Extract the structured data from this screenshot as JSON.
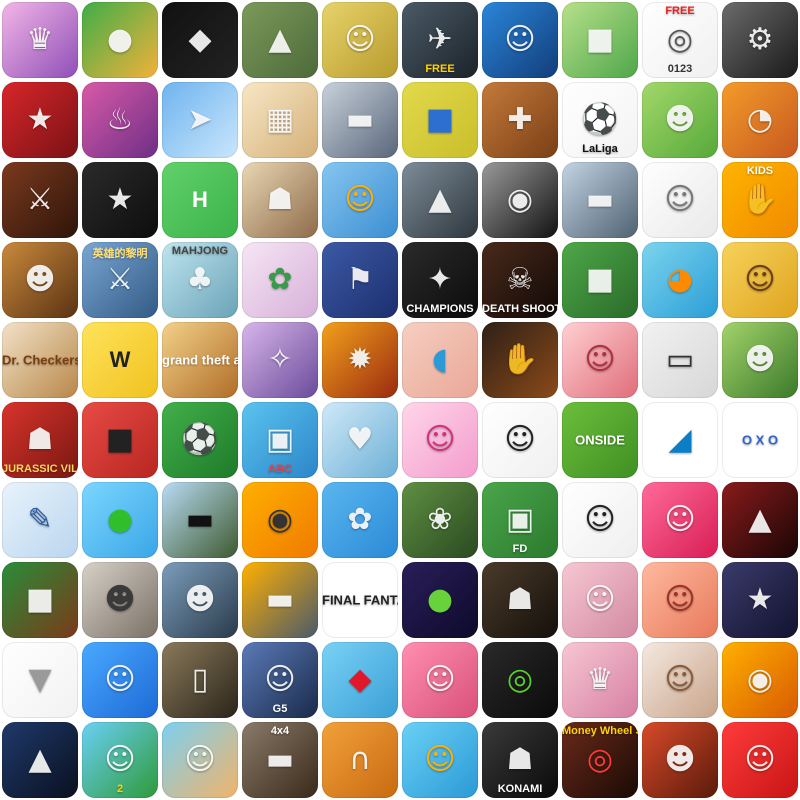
{
  "page": {
    "tiles": [
      {
        "icon": "princess-dress-icon",
        "bg": [
          "#f3b6e6",
          "#8f4fb8"
        ],
        "label": "",
        "glyph": "♛"
      },
      {
        "icon": "burger-icon",
        "bg": [
          "#3fae49",
          "#f2b13a"
        ],
        "label": "",
        "glyph": "●"
      },
      {
        "icon": "blue-creature-icon",
        "bg": [
          "#111111",
          "#222222"
        ],
        "label": "",
        "glyph": "◆"
      },
      {
        "icon": "gun-shooter-icon",
        "bg": [
          "#7b9a5a",
          "#4d6a3a"
        ],
        "label": "",
        "glyph": "▲"
      },
      {
        "icon": "letters-boy-icon",
        "bg": [
          "#e7d36b",
          "#b89b2d"
        ],
        "label": "",
        "glyph": "☺"
      },
      {
        "icon": "airplane-icon",
        "bg": [
          "#4b5a66",
          "#1b232a"
        ],
        "label": "FREE",
        "labelPos": "bottom",
        "labelColor": "#ffd400",
        "glyph": "✈"
      },
      {
        "icon": "cartoon-kids-icon",
        "bg": [
          "#2a86d8",
          "#123d7a"
        ],
        "label": "",
        "glyph": "☺"
      },
      {
        "icon": "blocky-character-icon",
        "bg": [
          "#b7e18a",
          "#4fa64a"
        ],
        "label": "",
        "glyph": "■"
      },
      {
        "icon": "target-numbers-icon",
        "bg": [
          "#ffffff",
          "#f0f0f0"
        ],
        "label": "FREE",
        "labelPos": "top",
        "labelColor": "#e82020",
        "sub": "0123",
        "glyph": "◎",
        "glyphColor": "#555555"
      },
      {
        "icon": "motorbike-icon",
        "bg": [
          "#6b6b6b",
          "#1a1a1a"
        ],
        "label": "",
        "glyph": "⚙"
      },
      {
        "icon": "santa-cat-icon",
        "bg": [
          "#d7262a",
          "#7a1214"
        ],
        "label": "",
        "glyph": "★"
      },
      {
        "icon": "restaurant-dash-icon",
        "bg": [
          "#d95aa8",
          "#6d2f86"
        ],
        "label": "",
        "glyph": "♨"
      },
      {
        "icon": "jet-fighter-icon",
        "bg": [
          "#6fb4ef",
          "#c9e6fb"
        ],
        "label": "",
        "glyph": "➤"
      },
      {
        "icon": "wood-blocks-icon",
        "bg": [
          "#f7e7c5",
          "#d5b07a"
        ],
        "label": "",
        "glyph": "▦"
      },
      {
        "icon": "truck-icon",
        "bg": [
          "#c9d2db",
          "#59667a"
        ],
        "label": "",
        "glyph": "▬"
      },
      {
        "icon": "blue-car-icon",
        "bg": [
          "#e2d94d",
          "#c9bf2a"
        ],
        "label": "",
        "glyph": "■",
        "glyphColor": "#2c6fd1"
      },
      {
        "icon": "jigsaw-puzzle-icon",
        "bg": [
          "#c47a3a",
          "#7a3f16"
        ],
        "label": "",
        "glyph": "✚"
      },
      {
        "icon": "laliga-icon",
        "bg": [
          "#ffffff",
          "#f3f3f3"
        ],
        "label": "LaLiga",
        "labelPos": "bottom",
        "labelColor": "#111111",
        "glyph": "⚽",
        "glyphColor": "#e23a3a"
      },
      {
        "icon": "panda-icon",
        "bg": [
          "#a2d86a",
          "#57a83a"
        ],
        "label": "",
        "glyph": "☻"
      },
      {
        "icon": "pizza-girl-icon",
        "bg": [
          "#f39c2a",
          "#c7581f"
        ],
        "label": "",
        "glyph": "◔"
      },
      {
        "icon": "roman-warrior-icon",
        "bg": [
          "#7b3a1e",
          "#2e1409"
        ],
        "label": "",
        "glyph": "⚔"
      },
      {
        "icon": "star-ship-icon",
        "bg": [
          "#2b2b2b",
          "#0d0d0d"
        ],
        "label": "",
        "glyph": "★"
      },
      {
        "icon": "h-letter-icon",
        "bg": [
          "#62d16a",
          "#3cb24a"
        ],
        "label": "H",
        "labelPos": "big",
        "labelColor": "#ffffff",
        "glyph": ""
      },
      {
        "icon": "pixel-man-icon",
        "bg": [
          "#e8d7b4",
          "#8e6b49"
        ],
        "label": "",
        "glyph": "☗"
      },
      {
        "icon": "orange-smile-icon",
        "bg": [
          "#86c6f0",
          "#3b8ed2"
        ],
        "label": "",
        "glyph": "☺",
        "glyphColor": "#ffb000"
      },
      {
        "icon": "road-skater-icon",
        "bg": [
          "#7e8d99",
          "#2e363d"
        ],
        "label": "",
        "glyph": "▲"
      },
      {
        "icon": "motorcycle-racer-icon",
        "bg": [
          "#9a9a9a",
          "#121212"
        ],
        "label": "",
        "glyph": "◉"
      },
      {
        "icon": "silver-car-icon",
        "bg": [
          "#c3d4e3",
          "#4f6272"
        ],
        "label": "",
        "glyph": "▬"
      },
      {
        "icon": "white-cat-icon",
        "bg": [
          "#ffffff",
          "#e9e9e9"
        ],
        "label": "",
        "glyph": "☺",
        "glyphColor": "#777777"
      },
      {
        "icon": "kids-hands-icon",
        "bg": [
          "#ffb400",
          "#f08a00"
        ],
        "label": "KIDS",
        "labelPos": "top",
        "labelColor": "#ffffff",
        "glyph": "✋"
      },
      {
        "icon": "cowboy-icon",
        "bg": [
          "#c98a3d",
          "#5a3212"
        ],
        "label": "",
        "glyph": "☻"
      },
      {
        "icon": "soldiers-icon",
        "bg": [
          "#7aa6d1",
          "#325b86"
        ],
        "label": "英雄的黎明",
        "labelPos": "top",
        "labelColor": "#ffe07a",
        "glyph": "⚔"
      },
      {
        "icon": "mahjong-icon",
        "bg": [
          "#bfe5ef",
          "#6aa3b7"
        ],
        "label": "MAHJONG",
        "labelPos": "top",
        "labelColor": "#444444",
        "glyph": "♣"
      },
      {
        "icon": "fairy-icon",
        "bg": [
          "#f6e6f5",
          "#d7b0d8"
        ],
        "label": "",
        "glyph": "✿",
        "glyphColor": "#3a9a4a"
      },
      {
        "icon": "racing-flags-icon",
        "bg": [
          "#3c5aa6",
          "#1c2f6e"
        ],
        "label": "",
        "glyph": "⚑"
      },
      {
        "icon": "real-steel-icon",
        "bg": [
          "#2b2b2b",
          "#0b0b0b"
        ],
        "label": "CHAMPIONS",
        "labelPos": "bottom",
        "labelColor": "#ffffff",
        "glyph": "✦"
      },
      {
        "icon": "death-shooter-icon",
        "bg": [
          "#4a2a1a",
          "#110907"
        ],
        "label": "DEATH SHOOTER",
        "labelPos": "bottom",
        "labelColor": "#ffffff",
        "glyph": "☠"
      },
      {
        "icon": "blocky-gunner-icon",
        "bg": [
          "#4ea848",
          "#2a6b2a"
        ],
        "label": "",
        "glyph": "■"
      },
      {
        "icon": "orange-juice-icon",
        "bg": [
          "#7cd4ee",
          "#2a9ed6"
        ],
        "label": "",
        "glyph": "◕",
        "glyphColor": "#ff8a00"
      },
      {
        "icon": "sombrero-face-icon",
        "bg": [
          "#f6d35a",
          "#e0a320"
        ],
        "label": "",
        "glyph": "☺",
        "glyphColor": "#6b3d1a"
      },
      {
        "icon": "dr-checkers-icon",
        "bg": [
          "#f2e2c6",
          "#b8874a"
        ],
        "label": "Dr. Checkers",
        "labelPos": "center",
        "labelColor": "#7a3e10",
        "glyph": ""
      },
      {
        "icon": "word-tiles-icon",
        "bg": [
          "#ffe35b",
          "#f0c21f"
        ],
        "label": "W",
        "labelPos": "big",
        "labelColor": "#222222",
        "glyph": ""
      },
      {
        "icon": "grand-theft-auto-icon",
        "bg": [
          "#f3d18a",
          "#b06d27"
        ],
        "label": "grand theft auto V",
        "labelPos": "center",
        "labelColor": "#ffffff",
        "glyph": ""
      },
      {
        "icon": "anime-witch-icon",
        "bg": [
          "#d8b6ea",
          "#6a4b9a"
        ],
        "label": "",
        "glyph": "✧"
      },
      {
        "icon": "spiky-hero-icon",
        "bg": [
          "#f2a11a",
          "#9a2a10"
        ],
        "label": "",
        "glyph": "✹"
      },
      {
        "icon": "blue-fish-icon",
        "bg": [
          "#f6cfc2",
          "#e9a796"
        ],
        "label": "",
        "glyph": "◖",
        "glyphColor": "#2b9ad6"
      },
      {
        "icon": "hand-fighter-icon",
        "bg": [
          "#2f2016",
          "#8a4a1a"
        ],
        "label": "",
        "glyph": "✋"
      },
      {
        "icon": "dentist-mouth-icon",
        "bg": [
          "#ffd0d3",
          "#e06d79"
        ],
        "label": "",
        "glyph": "☺",
        "glyphColor": "#b0303d"
      },
      {
        "icon": "assault-rifle-icon",
        "bg": [
          "#f2f2f2",
          "#d7d7d7"
        ],
        "label": "",
        "glyph": "▭",
        "glyphColor": "#333333"
      },
      {
        "icon": "jungle-monkey-icon",
        "bg": [
          "#a3d36b",
          "#3b7a2a"
        ],
        "label": "",
        "glyph": "☻"
      },
      {
        "icon": "jurassic-village-icon",
        "bg": [
          "#d8342b",
          "#7a1712"
        ],
        "label": "JURASSIC VILLAGE",
        "labelPos": "bottom",
        "labelColor": "#ffd35a",
        "glyph": "☗"
      },
      {
        "icon": "red-monster-icon",
        "bg": [
          "#e84b45",
          "#b82621"
        ],
        "label": "",
        "glyph": "■",
        "glyphColor": "#222222"
      },
      {
        "icon": "soccer-field-icon",
        "bg": [
          "#42b04a",
          "#1e7a2a"
        ],
        "label": "",
        "glyph": "⚽"
      },
      {
        "icon": "abc-train-icon",
        "bg": [
          "#5bc4ef",
          "#2b86c9"
        ],
        "label": "ABC",
        "labelPos": "bottom",
        "labelColor": "#ff3a3a",
        "glyph": "▣"
      },
      {
        "icon": "wedding-couple-icon",
        "bg": [
          "#cfe9f7",
          "#6db0d6"
        ],
        "label": "",
        "glyph": "♥"
      },
      {
        "icon": "pink-hair-girl-icon",
        "bg": [
          "#ffd6ea",
          "#f39ccc"
        ],
        "label": "",
        "glyph": "☺",
        "glyphColor": "#d1327f"
      },
      {
        "icon": "cartoon-boy-icon",
        "bg": [
          "#ffffff",
          "#f0f0f0"
        ],
        "label": "",
        "glyph": "☺",
        "glyphColor": "#222222"
      },
      {
        "icon": "onside-icon",
        "bg": [
          "#6bbf3a",
          "#3f8f24"
        ],
        "label": "ONSIDE",
        "labelPos": "center",
        "labelColor": "#ffffff",
        "glyph": ""
      },
      {
        "icon": "panther-icon",
        "bg": [
          "#ffffff",
          "#ffffff"
        ],
        "label": "",
        "glyph": "◢",
        "glyphColor": "#0a7fc6"
      },
      {
        "icon": "tic-tac-toe-icon",
        "bg": [
          "#ffffff",
          "#ffffff"
        ],
        "label": "O X O",
        "labelPos": "center",
        "labelColor": "#2b63c8",
        "glyph": ""
      },
      {
        "icon": "notebook-pen-icon",
        "bg": [
          "#e9f3fb",
          "#b9d6ef"
        ],
        "label": "",
        "glyph": "✎",
        "glyphColor": "#2d5fa1"
      },
      {
        "icon": "cut-the-rope-icon",
        "bg": [
          "#7cd6ff",
          "#3aa6e6"
        ],
        "label": "",
        "glyph": "●",
        "glyphColor": "#2fbf2a"
      },
      {
        "icon": "classic-car-icon",
        "bg": [
          "#b8dcf5",
          "#3e5a2e"
        ],
        "label": "",
        "glyph": "▬",
        "glyphColor": "#111111"
      },
      {
        "icon": "astronaut-icon",
        "bg": [
          "#ffb000",
          "#f07a00"
        ],
        "label": "",
        "glyph": "◉",
        "glyphColor": "#333333"
      },
      {
        "icon": "daisy-flower-icon",
        "bg": [
          "#5bb6ef",
          "#2a8ad6"
        ],
        "label": "",
        "glyph": "✿"
      },
      {
        "icon": "garden-stairs-icon",
        "bg": [
          "#5f8f43",
          "#2a4a20"
        ],
        "label": "",
        "glyph": "❀"
      },
      {
        "icon": "laliga-fantasy-icon",
        "bg": [
          "#4aa64b",
          "#2b7a2e"
        ],
        "label": "FD",
        "labelPos": "bottom",
        "labelColor": "#ffffff",
        "glyph": "▣"
      },
      {
        "icon": "doodle-cat-icon",
        "bg": [
          "#ffffff",
          "#efefef"
        ],
        "label": "",
        "glyph": "☺",
        "glyphColor": "#222222"
      },
      {
        "icon": "chef-icon",
        "bg": [
          "#ff6a9a",
          "#d81e55"
        ],
        "label": "",
        "glyph": "☺"
      },
      {
        "icon": "mafia-gun-icon",
        "bg": [
          "#8a1b1b",
          "#1a0505"
        ],
        "label": "",
        "glyph": "▲"
      },
      {
        "icon": "pixel-fighters-icon",
        "bg": [
          "#2a8c3a",
          "#7a3a1a"
        ],
        "label": "",
        "glyph": "■"
      },
      {
        "icon": "word-face-icon",
        "bg": [
          "#d7d1c8",
          "#7a7066"
        ],
        "label": "",
        "glyph": "☻",
        "glyphColor": "#3a3a3a"
      },
      {
        "icon": "soldier-vr-icon",
        "bg": [
          "#7b9dbb",
          "#2a3b4a"
        ],
        "label": "",
        "glyph": "☻"
      },
      {
        "icon": "orange-truck-icon",
        "bg": [
          "#ffb000",
          "#4a5a6a"
        ],
        "label": "",
        "glyph": "▬"
      },
      {
        "icon": "final-fantasy-icon",
        "bg": [
          "#ffffff",
          "#ffffff"
        ],
        "label": "FINAL FANTASY VI",
        "labelPos": "center",
        "labelColor": "#222222",
        "glyph": ""
      },
      {
        "icon": "green-monster-icon",
        "bg": [
          "#2a1e5a",
          "#0d0a2a"
        ],
        "label": "",
        "glyph": "●",
        "glyphColor": "#67d23a"
      },
      {
        "icon": "stone-giant-icon",
        "bg": [
          "#4a3b2a",
          "#15100b"
        ],
        "label": "",
        "glyph": "☗"
      },
      {
        "icon": "makeup-girl-icon",
        "bg": [
          "#f6c7d3",
          "#d38aa2"
        ],
        "label": "",
        "glyph": "☺"
      },
      {
        "icon": "crazy-dentist-icon",
        "bg": [
          "#ffb9a0",
          "#e8795a"
        ],
        "label": "",
        "glyph": "☺",
        "glyphColor": "#a0302a"
      },
      {
        "icon": "pixel-ninja-icon",
        "bg": [
          "#3b3b6a",
          "#121230"
        ],
        "label": "",
        "glyph": "★"
      },
      {
        "icon": "destiny-icon",
        "bg": [
          "#ffffff",
          "#f2f2f2"
        ],
        "label": "",
        "glyph": "▼",
        "glyphColor": "#9a9a9a"
      },
      {
        "icon": "angry-face-icon",
        "bg": [
          "#4aa9ff",
          "#1d6ad6"
        ],
        "label": "",
        "glyph": "☺"
      },
      {
        "icon": "stone-door-icon",
        "bg": [
          "#8a7a5a",
          "#2a241a"
        ],
        "label": "",
        "glyph": "▯"
      },
      {
        "icon": "mystery-woman-icon",
        "bg": [
          "#5a7bb8",
          "#1a2a4a"
        ],
        "label": "G5",
        "labelPos": "bottom",
        "labelColor": "#ffffff",
        "glyph": "☺"
      },
      {
        "icon": "jewels-icon",
        "bg": [
          "#7ad1f5",
          "#3aa0d6"
        ],
        "label": "",
        "glyph": "◆",
        "glyphColor": "#e0182a"
      },
      {
        "icon": "pink-pig-icon",
        "bg": [
          "#ff8fb1",
          "#d9507a"
        ],
        "label": "",
        "glyph": "☺"
      },
      {
        "icon": "ben-10-icon",
        "bg": [
          "#2a2a2a",
          "#0a0a0a"
        ],
        "label": "",
        "glyph": "◎",
        "glyphColor": "#5ad12a"
      },
      {
        "icon": "blonde-princess-icon",
        "bg": [
          "#f6c7d3",
          "#d77fa2"
        ],
        "label": "",
        "glyph": "♛"
      },
      {
        "icon": "doll-girl-icon",
        "bg": [
          "#f5e9e0",
          "#c8a48a"
        ],
        "label": "",
        "glyph": "☺",
        "glyphColor": "#8a5a3a"
      },
      {
        "icon": "robot-fighter-icon",
        "bg": [
          "#ffb000",
          "#d85a00"
        ],
        "label": "",
        "glyph": "◉"
      },
      {
        "icon": "titanic-ship-icon",
        "bg": [
          "#1e3a6a",
          "#0a1020"
        ],
        "label": "",
        "glyph": "▲"
      },
      {
        "icon": "leprechaun-icon",
        "bg": [
          "#6ad0f5",
          "#2e9a3a"
        ],
        "label": "2",
        "labelPos": "bottom",
        "labelColor": "#ffd400",
        "glyph": "☺"
      },
      {
        "icon": "tropical-girl-icon",
        "bg": [
          "#7bd0f0",
          "#f2b36a"
        ],
        "label": "",
        "glyph": "☺"
      },
      {
        "icon": "4x4-truck-icon",
        "bg": [
          "#8a7a6a",
          "#3a2a1a"
        ],
        "label": "4x4",
        "labelPos": "top",
        "labelColor": "#ffffff",
        "glyph": "▬"
      },
      {
        "icon": "horseshoe-icon",
        "bg": [
          "#f2a13a",
          "#c86a12"
        ],
        "label": "",
        "glyph": "∩"
      },
      {
        "icon": "bubble-baby-icon",
        "bg": [
          "#6ad0f5",
          "#2a9ad6"
        ],
        "label": "",
        "glyph": "☺",
        "glyphColor": "#ffb000"
      },
      {
        "icon": "snake-soldier-icon",
        "bg": [
          "#3a3a3a",
          "#0a0a0a"
        ],
        "label": "KONAMI",
        "labelPos": "bottom",
        "labelColor": "#ffffff",
        "glyph": "☗"
      },
      {
        "icon": "money-wheel-slot-icon",
        "bg": [
          "#6a2a1a",
          "#1a0a05"
        ],
        "label": "Money Wheel SLOT MACHINE",
        "labelPos": "top",
        "labelColor": "#ffd400",
        "glyph": "◎",
        "glyphColor": "#ff3a3a"
      },
      {
        "icon": "rock-singer-icon",
        "bg": [
          "#d84a2a",
          "#5a1a0a"
        ],
        "label": "",
        "glyph": "☻"
      },
      {
        "icon": "strawberry-icon",
        "bg": [
          "#ff3b3b",
          "#c81515"
        ],
        "label": "",
        "glyph": "☺"
      }
    ]
  }
}
